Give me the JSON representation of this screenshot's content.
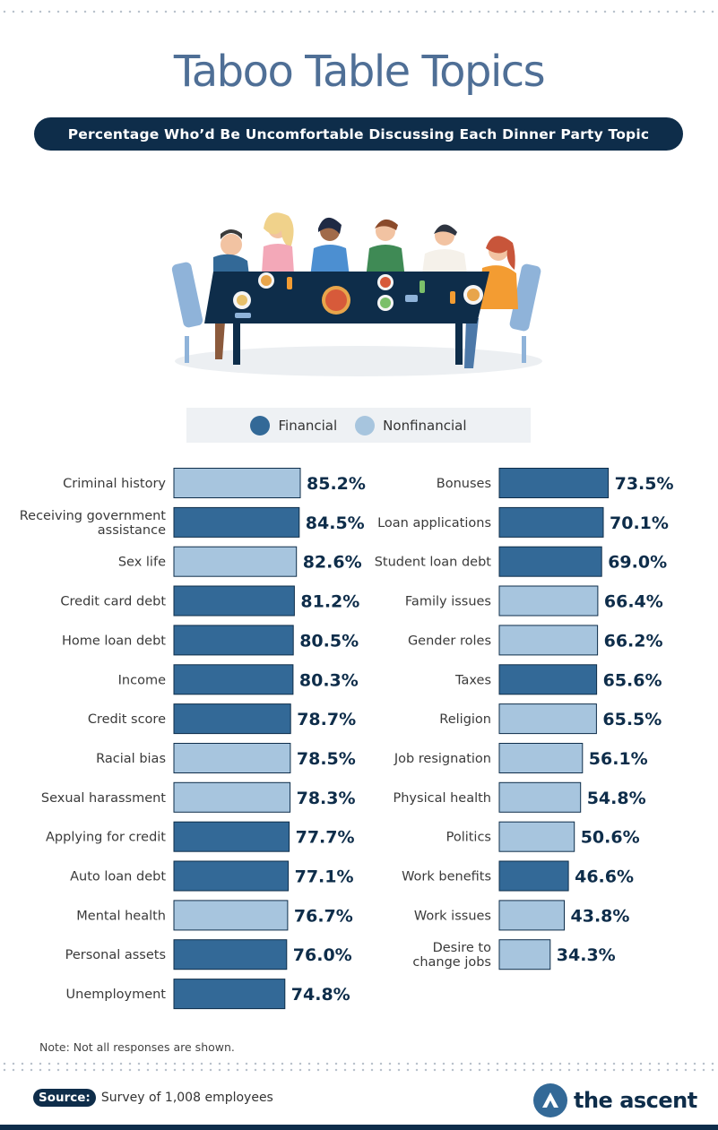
{
  "header": {
    "title": "Taboo Table Topics",
    "subtitle": "Percentage Who’d Be Uncomfortable Discussing Each Dinner Party Topic"
  },
  "legend": {
    "financial": "Financial",
    "nonfinancial": "Nonfinancial"
  },
  "colors": {
    "financial": "#336997",
    "nonfinancial": "#a7c5de",
    "dark_navy": "#0e2d4a"
  },
  "chart_data": {
    "type": "bar",
    "orientation": "horizontal",
    "title": "Percentage Who’d Be Uncomfortable Discussing Each Dinner Party Topic",
    "unit": "%",
    "columns": [
      {
        "items": [
          {
            "label": [
              "Criminal history"
            ],
            "value": 85.2,
            "display": "85.2%",
            "category": "nonfinancial"
          },
          {
            "label": [
              "Receiving government",
              "assistance"
            ],
            "value": 84.5,
            "display": "84.5%",
            "category": "financial"
          },
          {
            "label": [
              "Sex life"
            ],
            "value": 82.6,
            "display": "82.6%",
            "category": "nonfinancial"
          },
          {
            "label": [
              "Credit card debt"
            ],
            "value": 81.2,
            "display": "81.2%",
            "category": "financial"
          },
          {
            "label": [
              "Home loan debt"
            ],
            "value": 80.5,
            "display": "80.5%",
            "category": "financial"
          },
          {
            "label": [
              "Income"
            ],
            "value": 80.3,
            "display": "80.3%",
            "category": "financial"
          },
          {
            "label": [
              "Credit score"
            ],
            "value": 78.7,
            "display": "78.7%",
            "category": "financial"
          },
          {
            "label": [
              "Racial bias"
            ],
            "value": 78.5,
            "display": "78.5%",
            "category": "nonfinancial"
          },
          {
            "label": [
              "Sexual harassment"
            ],
            "value": 78.3,
            "display": "78.3%",
            "category": "nonfinancial"
          },
          {
            "label": [
              "Applying for credit"
            ],
            "value": 77.7,
            "display": "77.7%",
            "category": "financial"
          },
          {
            "label": [
              "Auto loan debt"
            ],
            "value": 77.1,
            "display": "77.1%",
            "category": "financial"
          },
          {
            "label": [
              "Mental health"
            ],
            "value": 76.7,
            "display": "76.7%",
            "category": "nonfinancial"
          },
          {
            "label": [
              "Personal assets"
            ],
            "value": 76.0,
            "display": "76.0%",
            "category": "financial"
          },
          {
            "label": [
              "Unemployment"
            ],
            "value": 74.8,
            "display": "74.8%",
            "category": "financial"
          }
        ]
      },
      {
        "items": [
          {
            "label": [
              "Bonuses"
            ],
            "value": 73.5,
            "display": "73.5%",
            "category": "financial"
          },
          {
            "label": [
              "Loan applications"
            ],
            "value": 70.1,
            "display": "70.1%",
            "category": "financial"
          },
          {
            "label": [
              "Student loan debt"
            ],
            "value": 69.0,
            "display": "69.0%",
            "category": "financial"
          },
          {
            "label": [
              "Family issues"
            ],
            "value": 66.4,
            "display": "66.4%",
            "category": "nonfinancial"
          },
          {
            "label": [
              "Gender roles"
            ],
            "value": 66.2,
            "display": "66.2%",
            "category": "nonfinancial"
          },
          {
            "label": [
              "Taxes"
            ],
            "value": 65.6,
            "display": "65.6%",
            "category": "financial"
          },
          {
            "label": [
              "Religion"
            ],
            "value": 65.5,
            "display": "65.5%",
            "category": "nonfinancial"
          },
          {
            "label": [
              "Job resignation"
            ],
            "value": 56.1,
            "display": "56.1%",
            "category": "nonfinancial"
          },
          {
            "label": [
              "Physical health"
            ],
            "value": 54.8,
            "display": "54.8%",
            "category": "nonfinancial"
          },
          {
            "label": [
              "Politics"
            ],
            "value": 50.6,
            "display": "50.6%",
            "category": "nonfinancial"
          },
          {
            "label": [
              "Work benefits"
            ],
            "value": 46.6,
            "display": "46.6%",
            "category": "financial"
          },
          {
            "label": [
              "Work issues"
            ],
            "value": 43.8,
            "display": "43.8%",
            "category": "nonfinancial"
          },
          {
            "label": [
              "Desire to",
              "change jobs"
            ],
            "value": 34.3,
            "display": "34.3%",
            "category": "nonfinancial"
          }
        ]
      }
    ]
  },
  "footer": {
    "note": "Note: Not all responses are shown.",
    "source_label": "Source:",
    "source_text": "Survey of 1,008 employees",
    "brand": "the ascent"
  }
}
